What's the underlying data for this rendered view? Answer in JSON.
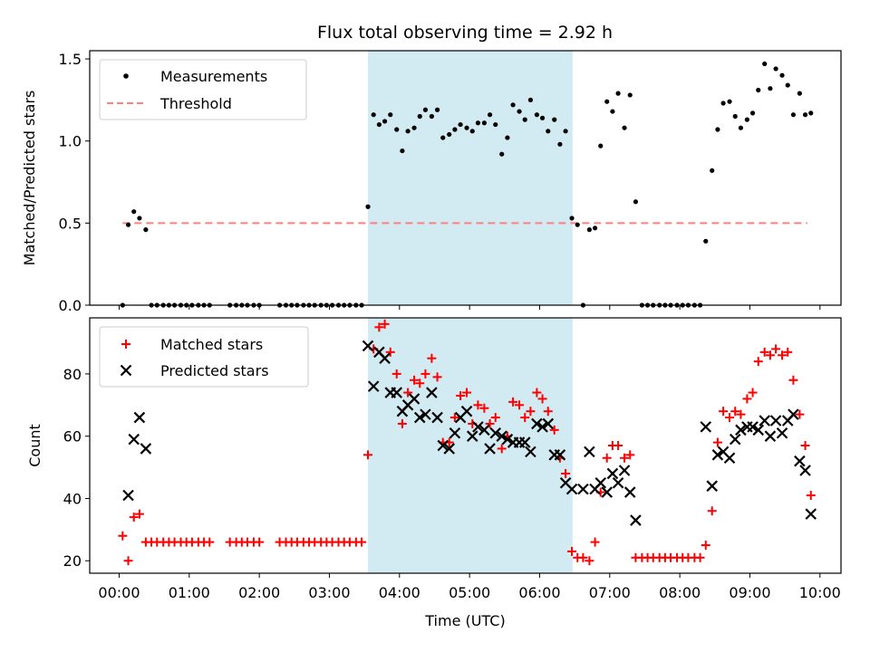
{
  "title": "Flux total observing time = 2.92 h",
  "colors": {
    "measurement": "#000000",
    "threshold": "#ff7f7f",
    "matched": "#ff0000",
    "predicted": "#000000",
    "span": "#add8e6"
  },
  "chart_data": [
    {
      "type": "scatter",
      "ylabel": "Matched/Predicted stars",
      "ylim": [
        0,
        1.55
      ],
      "yticks": [
        0,
        0.5,
        1.0,
        1.5
      ],
      "ytick_labels": [
        "0.0",
        "0.5",
        "1.0",
        "1.5"
      ],
      "legend": {
        "placement": "top-left",
        "entries": [
          "Measurements",
          "Threshold"
        ]
      },
      "threshold": {
        "value": 0.5,
        "x_start": 0.05,
        "x_end": 9.82
      },
      "measurements": [
        [
          0.05,
          0
        ],
        [
          0.13,
          0.49
        ],
        [
          0.21,
          0.57
        ],
        [
          0.29,
          0.53
        ],
        [
          0.38,
          0.46
        ],
        [
          0.46,
          0
        ],
        [
          0.54,
          0
        ],
        [
          0.63,
          0
        ],
        [
          0.71,
          0
        ],
        [
          0.79,
          0
        ],
        [
          0.88,
          0
        ],
        [
          0.96,
          0
        ],
        [
          1.04,
          0
        ],
        [
          1.13,
          0
        ],
        [
          1.21,
          0
        ],
        [
          1.29,
          0
        ],
        [
          1.58,
          0
        ],
        [
          1.67,
          0
        ],
        [
          1.75,
          0
        ],
        [
          1.83,
          0
        ],
        [
          1.92,
          0
        ],
        [
          2.0,
          0
        ],
        [
          2.29,
          0
        ],
        [
          2.38,
          0
        ],
        [
          2.46,
          0
        ],
        [
          2.54,
          0
        ],
        [
          2.63,
          0
        ],
        [
          2.71,
          0
        ],
        [
          2.79,
          0
        ],
        [
          2.88,
          0
        ],
        [
          2.96,
          0
        ],
        [
          3.04,
          0
        ],
        [
          3.13,
          0
        ],
        [
          3.21,
          0
        ],
        [
          3.29,
          0
        ],
        [
          3.38,
          0
        ],
        [
          3.46,
          0
        ],
        [
          3.55,
          0.6
        ],
        [
          3.63,
          1.16
        ],
        [
          3.71,
          1.1
        ],
        [
          3.79,
          1.12
        ],
        [
          3.87,
          1.16
        ],
        [
          3.96,
          1.07
        ],
        [
          4.04,
          0.94
        ],
        [
          4.12,
          1.06
        ],
        [
          4.21,
          1.08
        ],
        [
          4.29,
          1.15
        ],
        [
          4.37,
          1.19
        ],
        [
          4.46,
          1.15
        ],
        [
          4.54,
          1.19
        ],
        [
          4.62,
          1.02
        ],
        [
          4.71,
          1.04
        ],
        [
          4.79,
          1.07
        ],
        [
          4.87,
          1.1
        ],
        [
          4.96,
          1.08
        ],
        [
          5.04,
          1.06
        ],
        [
          5.12,
          1.11
        ],
        [
          5.21,
          1.11
        ],
        [
          5.29,
          1.16
        ],
        [
          5.37,
          1.1
        ],
        [
          5.46,
          0.92
        ],
        [
          5.54,
          1.02
        ],
        [
          5.62,
          1.22
        ],
        [
          5.71,
          1.18
        ],
        [
          5.79,
          1.13
        ],
        [
          5.87,
          1.25
        ],
        [
          5.96,
          1.16
        ],
        [
          6.04,
          1.14
        ],
        [
          6.12,
          1.06
        ],
        [
          6.21,
          1.13
        ],
        [
          6.29,
          0.98
        ],
        [
          6.37,
          1.06
        ],
        [
          6.46,
          0.53
        ],
        [
          6.54,
          0.49
        ],
        [
          6.62,
          0
        ],
        [
          6.71,
          0.46
        ],
        [
          6.79,
          0.47
        ],
        [
          6.87,
          0.97
        ],
        [
          6.96,
          1.24
        ],
        [
          7.04,
          1.18
        ],
        [
          7.12,
          1.29
        ],
        [
          7.21,
          1.08
        ],
        [
          7.29,
          1.28
        ],
        [
          7.37,
          0.63
        ],
        [
          7.46,
          0
        ],
        [
          7.54,
          0
        ],
        [
          7.62,
          0
        ],
        [
          7.71,
          0
        ],
        [
          7.79,
          0
        ],
        [
          7.87,
          0
        ],
        [
          7.96,
          0
        ],
        [
          8.04,
          0
        ],
        [
          8.12,
          0
        ],
        [
          8.21,
          0
        ],
        [
          8.29,
          0
        ],
        [
          8.37,
          0.39
        ],
        [
          8.46,
          0.82
        ],
        [
          8.54,
          1.07
        ],
        [
          8.62,
          1.23
        ],
        [
          8.71,
          1.24
        ],
        [
          8.79,
          1.15
        ],
        [
          8.87,
          1.08
        ],
        [
          8.96,
          1.13
        ],
        [
          9.04,
          1.17
        ],
        [
          9.12,
          1.31
        ],
        [
          9.21,
          1.47
        ],
        [
          9.29,
          1.32
        ],
        [
          9.37,
          1.44
        ],
        [
          9.46,
          1.4
        ],
        [
          9.54,
          1.34
        ],
        [
          9.62,
          1.16
        ],
        [
          9.71,
          1.29
        ],
        [
          9.79,
          1.16
        ],
        [
          9.87,
          1.17
        ]
      ]
    },
    {
      "type": "scatter",
      "xlabel": "Time (UTC)",
      "ylabel": "Count",
      "xlim": [
        -0.42,
        10.3
      ],
      "ylim": [
        16,
        98
      ],
      "xticks": [
        0,
        1,
        2,
        3,
        4,
        5,
        6,
        7,
        8,
        9,
        10
      ],
      "xtick_labels": [
        "00:00",
        "01:00",
        "02:00",
        "03:00",
        "04:00",
        "05:00",
        "06:00",
        "07:00",
        "08:00",
        "09:00",
        "10:00"
      ],
      "yticks": [
        20,
        40,
        60,
        80
      ],
      "ytick_labels": [
        "20",
        "40",
        "60",
        "80"
      ],
      "legend": {
        "placement": "top-left",
        "entries": [
          "Matched stars",
          "Predicted stars"
        ]
      },
      "matched": [
        [
          0.05,
          28
        ],
        [
          0.13,
          20
        ],
        [
          0.21,
          34
        ],
        [
          0.29,
          35
        ],
        [
          0.38,
          26
        ],
        [
          0.46,
          26
        ],
        [
          0.54,
          26
        ],
        [
          0.63,
          26
        ],
        [
          0.71,
          26
        ],
        [
          0.79,
          26
        ],
        [
          0.88,
          26
        ],
        [
          0.96,
          26
        ],
        [
          1.04,
          26
        ],
        [
          1.13,
          26
        ],
        [
          1.21,
          26
        ],
        [
          1.29,
          26
        ],
        [
          1.58,
          26
        ],
        [
          1.67,
          26
        ],
        [
          1.75,
          26
        ],
        [
          1.83,
          26
        ],
        [
          1.92,
          26
        ],
        [
          2.0,
          26
        ],
        [
          2.29,
          26
        ],
        [
          2.38,
          26
        ],
        [
          2.46,
          26
        ],
        [
          2.54,
          26
        ],
        [
          2.63,
          26
        ],
        [
          2.71,
          26
        ],
        [
          2.79,
          26
        ],
        [
          2.88,
          26
        ],
        [
          2.96,
          26
        ],
        [
          3.04,
          26
        ],
        [
          3.13,
          26
        ],
        [
          3.21,
          26
        ],
        [
          3.29,
          26
        ],
        [
          3.38,
          26
        ],
        [
          3.46,
          26
        ],
        [
          3.55,
          54
        ],
        [
          3.63,
          88
        ],
        [
          3.71,
          95
        ],
        [
          3.79,
          96
        ],
        [
          3.87,
          87
        ],
        [
          3.96,
          80
        ],
        [
          4.04,
          64
        ],
        [
          4.12,
          74
        ],
        [
          4.21,
          78
        ],
        [
          4.29,
          77
        ],
        [
          4.37,
          80
        ],
        [
          4.46,
          85
        ],
        [
          4.54,
          79
        ],
        [
          4.62,
          58
        ],
        [
          4.71,
          58
        ],
        [
          4.79,
          66
        ],
        [
          4.87,
          73
        ],
        [
          4.96,
          74
        ],
        [
          5.04,
          64
        ],
        [
          5.12,
          70
        ],
        [
          5.21,
          69
        ],
        [
          5.29,
          64
        ],
        [
          5.37,
          66
        ],
        [
          5.46,
          56
        ],
        [
          5.54,
          60
        ],
        [
          5.62,
          71
        ],
        [
          5.71,
          70
        ],
        [
          5.79,
          66
        ],
        [
          5.87,
          68
        ],
        [
          5.96,
          74
        ],
        [
          6.04,
          72
        ],
        [
          6.12,
          68
        ],
        [
          6.21,
          62
        ],
        [
          6.29,
          53
        ],
        [
          6.37,
          48
        ],
        [
          6.46,
          23
        ],
        [
          6.54,
          21
        ],
        [
          6.62,
          21
        ],
        [
          6.71,
          20
        ],
        [
          6.79,
          26
        ],
        [
          6.87,
          42
        ],
        [
          6.96,
          53
        ],
        [
          7.04,
          57
        ],
        [
          7.12,
          57
        ],
        [
          7.21,
          53
        ],
        [
          7.29,
          54
        ],
        [
          7.37,
          21
        ],
        [
          7.46,
          21
        ],
        [
          7.54,
          21
        ],
        [
          7.62,
          21
        ],
        [
          7.71,
          21
        ],
        [
          7.79,
          21
        ],
        [
          7.87,
          21
        ],
        [
          7.96,
          21
        ],
        [
          8.04,
          21
        ],
        [
          8.12,
          21
        ],
        [
          8.21,
          21
        ],
        [
          8.29,
          21
        ],
        [
          8.37,
          25
        ],
        [
          8.46,
          36
        ],
        [
          8.54,
          58
        ],
        [
          8.62,
          68
        ],
        [
          8.71,
          66
        ],
        [
          8.79,
          68
        ],
        [
          8.87,
          67
        ],
        [
          8.96,
          72
        ],
        [
          9.04,
          74
        ],
        [
          9.12,
          84
        ],
        [
          9.21,
          87
        ],
        [
          9.29,
          86
        ],
        [
          9.37,
          88
        ],
        [
          9.46,
          86
        ],
        [
          9.54,
          87
        ],
        [
          9.62,
          78
        ],
        [
          9.71,
          67
        ],
        [
          9.79,
          57
        ],
        [
          9.87,
          41
        ]
      ],
      "predicted": [
        [
          0.13,
          41
        ],
        [
          0.21,
          59
        ],
        [
          0.29,
          66
        ],
        [
          0.38,
          56
        ],
        [
          3.55,
          89
        ],
        [
          3.63,
          76
        ],
        [
          3.71,
          87
        ],
        [
          3.79,
          85
        ],
        [
          3.87,
          74
        ],
        [
          3.96,
          74
        ],
        [
          4.04,
          68
        ],
        [
          4.12,
          70
        ],
        [
          4.21,
          72
        ],
        [
          4.29,
          66
        ],
        [
          4.37,
          67
        ],
        [
          4.46,
          74
        ],
        [
          4.54,
          66
        ],
        [
          4.62,
          57
        ],
        [
          4.71,
          56
        ],
        [
          4.79,
          61
        ],
        [
          4.87,
          66
        ],
        [
          4.96,
          68
        ],
        [
          5.04,
          60
        ],
        [
          5.12,
          63
        ],
        [
          5.21,
          62
        ],
        [
          5.29,
          56
        ],
        [
          5.37,
          61
        ],
        [
          5.46,
          60
        ],
        [
          5.54,
          59
        ],
        [
          5.62,
          58
        ],
        [
          5.71,
          58
        ],
        [
          5.79,
          58
        ],
        [
          5.87,
          55
        ],
        [
          5.96,
          64
        ],
        [
          6.04,
          63
        ],
        [
          6.12,
          64
        ],
        [
          6.21,
          54
        ],
        [
          6.29,
          54
        ],
        [
          6.37,
          45
        ],
        [
          6.46,
          43
        ],
        [
          6.62,
          43
        ],
        [
          6.71,
          55
        ],
        [
          6.79,
          43
        ],
        [
          6.87,
          45
        ],
        [
          6.96,
          42
        ],
        [
          7.04,
          48
        ],
        [
          7.12,
          45
        ],
        [
          7.21,
          49
        ],
        [
          7.29,
          42
        ],
        [
          7.37,
          33
        ],
        [
          8.37,
          63
        ],
        [
          8.46,
          44
        ],
        [
          8.54,
          54
        ],
        [
          8.62,
          55
        ],
        [
          8.71,
          53
        ],
        [
          8.79,
          59
        ],
        [
          8.87,
          62
        ],
        [
          8.96,
          63
        ],
        [
          9.04,
          63
        ],
        [
          9.12,
          62
        ],
        [
          9.21,
          65
        ],
        [
          9.29,
          60
        ],
        [
          9.37,
          65
        ],
        [
          9.46,
          61
        ],
        [
          9.54,
          65
        ],
        [
          9.62,
          67
        ],
        [
          9.71,
          52
        ],
        [
          9.79,
          49
        ],
        [
          9.87,
          35
        ]
      ]
    }
  ],
  "span": {
    "x_start": 3.55,
    "x_end": 6.47
  }
}
